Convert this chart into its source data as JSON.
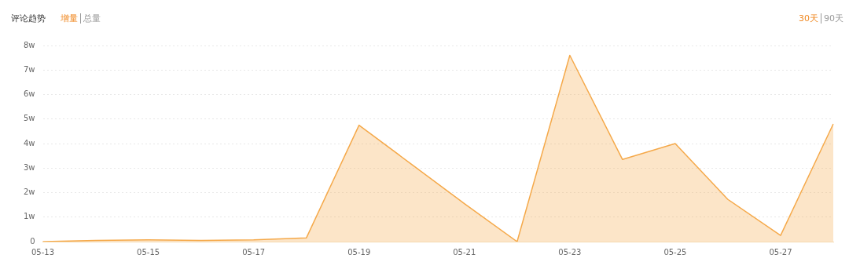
{
  "chart_data": {
    "type": "area",
    "title": "评论趋势",
    "annotations": [
      "增量",
      "总量",
      "30天",
      "90天"
    ],
    "categories": [
      "05-13",
      null,
      "05-15",
      null,
      "05-17",
      null,
      "05-19",
      null,
      "05-21",
      null,
      "05-23",
      null,
      "05-25",
      null,
      "05-27",
      null
    ],
    "series": [
      {
        "color": "#f5a94a",
        "values": [
          0,
          0.05,
          0.07,
          0.05,
          0.07,
          0.15,
          4.75,
          3.15,
          1.55,
          0,
          7.6,
          3.35,
          4.0,
          1.72,
          0.25,
          4.8
        ]
      }
    ],
    "ylim": [
      0,
      8
    ],
    "yticks": [
      0,
      {
        "value": 1,
        "label": "1w"
      },
      {
        "value": 2,
        "label": "2w"
      },
      {
        "value": 3,
        "label": "3w"
      },
      {
        "value": 4,
        "label": "4w"
      },
      {
        "value": 5,
        "label": "5w"
      },
      {
        "value": 6,
        "label": "6w"
      },
      {
        "value": 7,
        "label": "7w"
      },
      {
        "value": 8,
        "label": "8w"
      }
    ],
    "grid": "y",
    "legend": false,
    "marker": "none",
    "line_style": "solid"
  }
}
